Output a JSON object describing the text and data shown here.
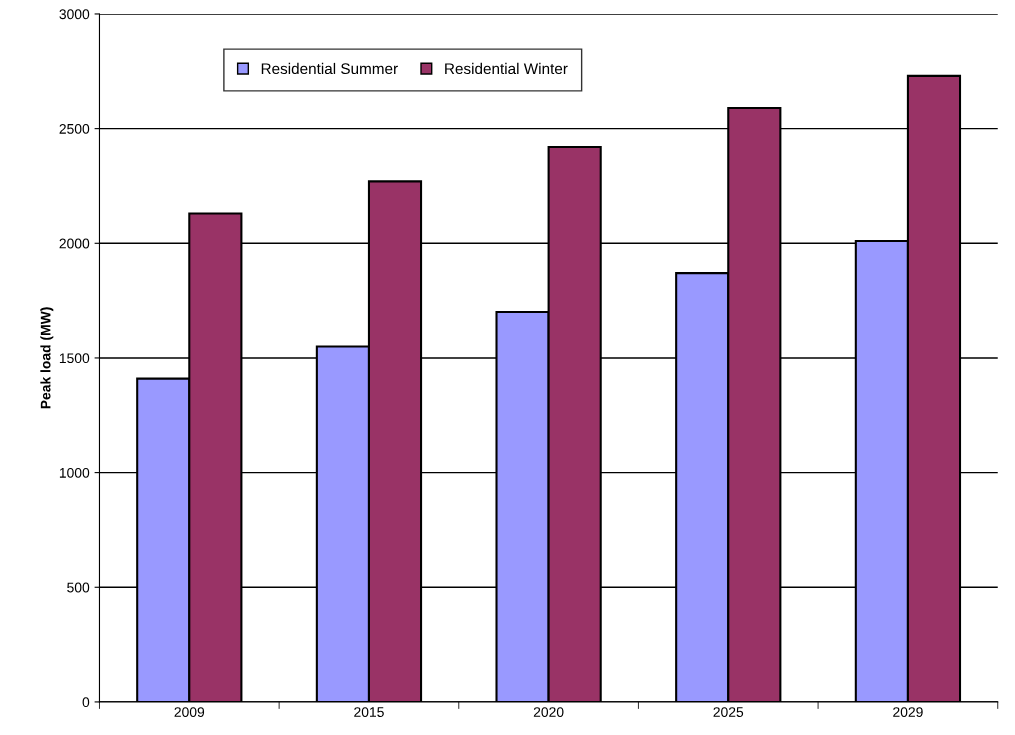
{
  "chart_data": {
    "type": "bar",
    "ylabel": "Peak load (MW)",
    "categories": [
      "2009",
      "2015",
      "2020",
      "2025",
      "2029"
    ],
    "series": [
      {
        "name": "Residential Summer",
        "color": "#9999ff",
        "values": [
          1410,
          1550,
          1700,
          1870,
          2010
        ]
      },
      {
        "name": "Residential Winter",
        "color": "#993366",
        "values": [
          2130,
          2270,
          2420,
          2590,
          2730
        ]
      }
    ],
    "ylim": [
      0,
      3000
    ],
    "yticks": [
      0,
      500,
      1000,
      1500,
      2000,
      2500,
      3000
    ],
    "grid": "y",
    "legend": "top left"
  }
}
